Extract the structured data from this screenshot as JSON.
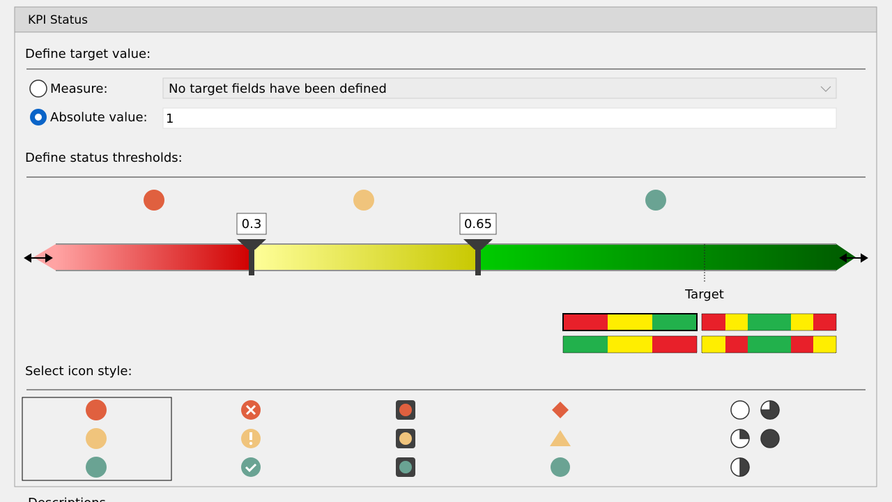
{
  "header": {
    "title": "KPI Status"
  },
  "target": {
    "heading": "Define target value:",
    "measure_label": "Measure:",
    "measure_value": "No target fields have been defined",
    "absolute_label": "Absolute value:",
    "absolute_value": "1"
  },
  "thresholds": {
    "heading": "Define status thresholds:",
    "values": [
      "0.3",
      "0.65"
    ],
    "target_label": "Target"
  },
  "icon_style": {
    "heading": "Select icon style:"
  },
  "footer": {
    "heading": "Descriptions"
  }
}
